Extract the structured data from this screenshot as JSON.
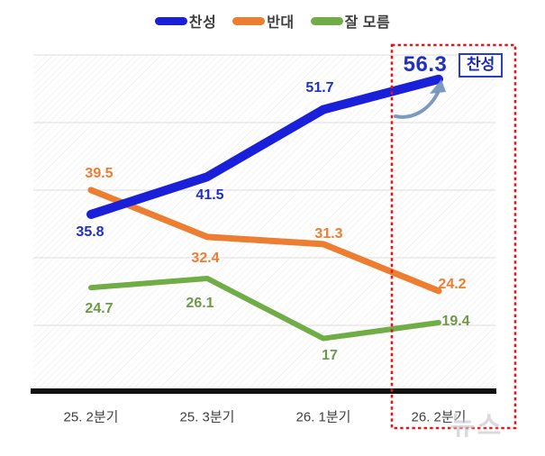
{
  "chart_data": {
    "type": "line",
    "title": "",
    "categories": [
      "25. 2분기",
      "25. 3분기",
      "26. 1분기",
      "26. 2분기"
    ],
    "series": [
      {
        "name": "찬성",
        "color": "#1a1fd9",
        "label_color": "#2130c0",
        "values": [
          35.8,
          41.5,
          51.7,
          56.3
        ]
      },
      {
        "name": "반대",
        "color": "#ed7d31",
        "label_color": "#ed7d31",
        "values": [
          39.5,
          32.4,
          31.3,
          24.2
        ]
      },
      {
        "name": "잘 모름",
        "color": "#70ad47",
        "label_color": "#6d9a48",
        "values": [
          24.7,
          26.1,
          17,
          19.4
        ]
      }
    ],
    "ylim": [
      8.7,
      63
    ],
    "grid": "horizontal-only",
    "legend_position": "top-center",
    "annotations": [
      {
        "type": "highlight-box",
        "target": "26. 2분기",
        "style": "red dashed rectangle"
      },
      {
        "type": "callout",
        "label": "찬성",
        "target": "56.3",
        "style": "blue boxed label with curved arrow"
      }
    ]
  },
  "legend": {
    "items": [
      {
        "label": "찬성",
        "color": "#1a1fd9"
      },
      {
        "label": "반대",
        "color": "#ed7d31"
      },
      {
        "label": "잘 모름",
        "color": "#70ad47"
      }
    ]
  },
  "annotation": {
    "callout_label": "찬성"
  },
  "watermark": {
    "text": "뉴스"
  },
  "colors": {
    "highlight_box": "#e31515",
    "arrow": "#6e8fb7",
    "axis": "#111111",
    "gridline": "#dcdcdc"
  }
}
